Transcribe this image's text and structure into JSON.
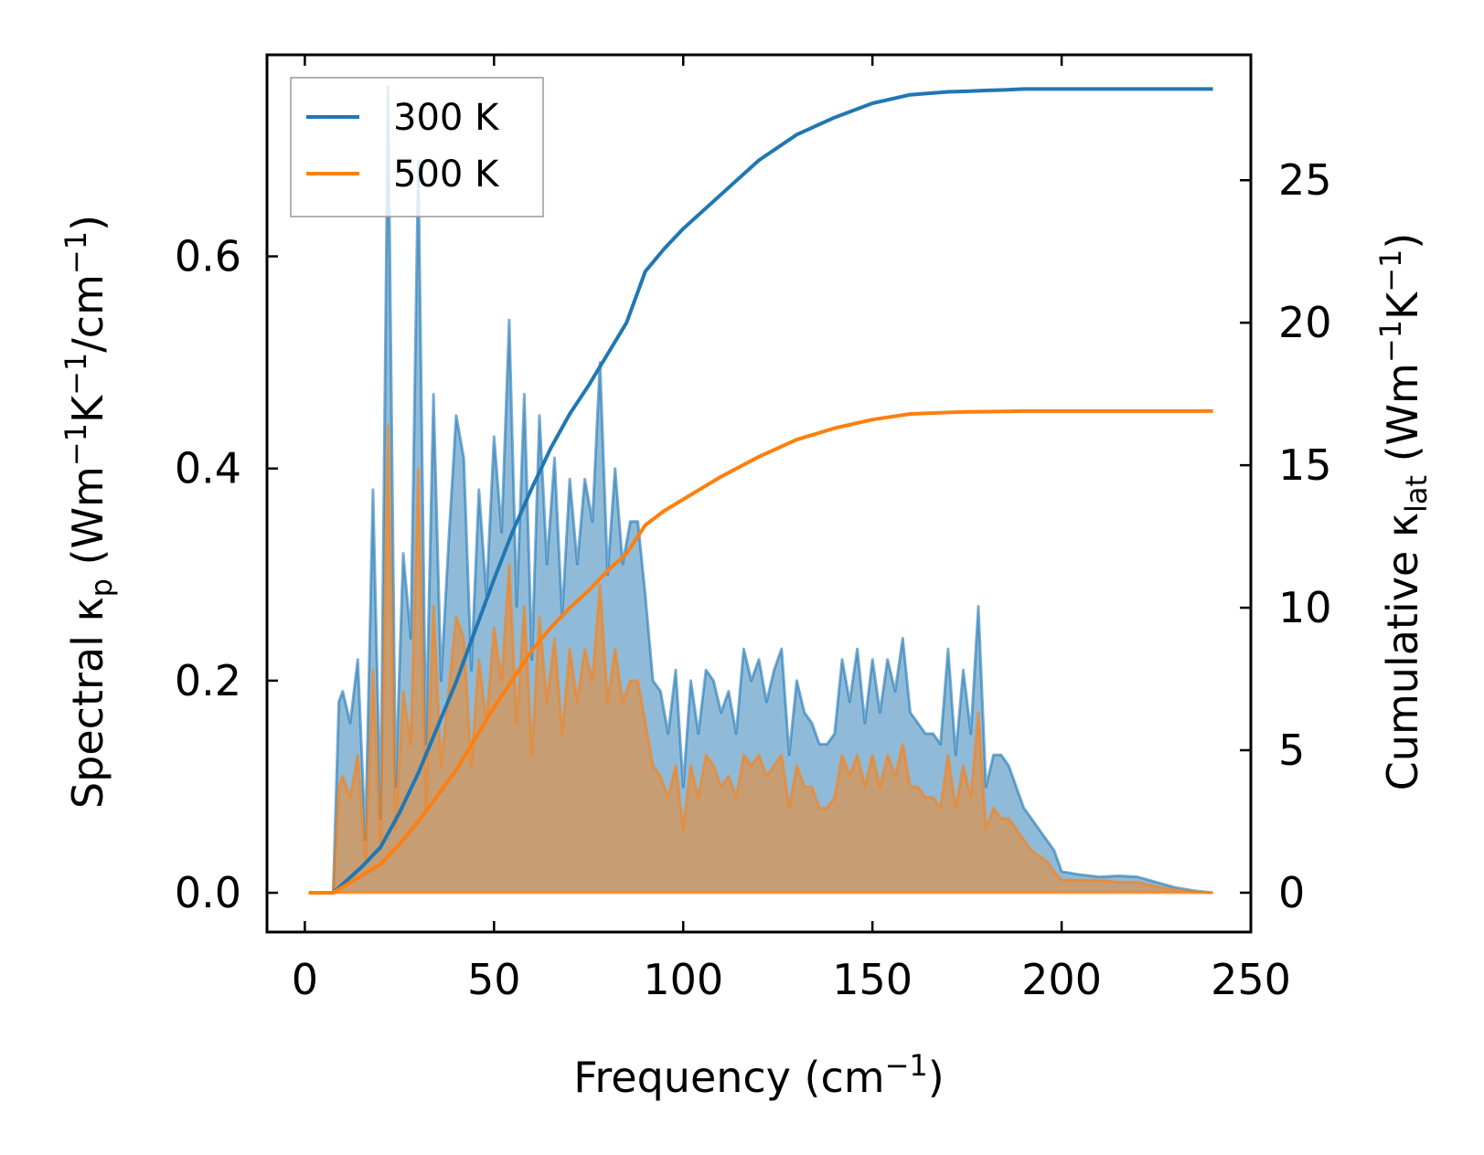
{
  "chart_data": {
    "type": "line",
    "subtype": "dual-axis filled line",
    "xlabel": {
      "base": "Frequency (cm",
      "sup": "−1",
      "end": ")"
    },
    "ylabel_left": {
      "base": "Spectral κ",
      "sub": "p",
      "mid": " (Wm",
      "sup1": "−1",
      "k": "K",
      "sup2": "−1",
      "slash": "/cm",
      "sup3": "−1",
      "end": ")"
    },
    "ylabel_right": {
      "base": "Cumulative κ",
      "sub": "lat",
      "mid": " (Wm",
      "sup1": "−1",
      "k": "K",
      "sup2": "−1",
      "end": ")"
    },
    "xlim": [
      -10,
      250
    ],
    "ylim_left": [
      -0.037,
      0.79
    ],
    "ylim_right": [
      -1.38,
      29.4
    ],
    "xticks": [
      0,
      50,
      100,
      150,
      200,
      250
    ],
    "xtick_labels": [
      "0",
      "50",
      "100",
      "150",
      "200",
      "250"
    ],
    "yticks_left": [
      0.0,
      0.2,
      0.4,
      0.6
    ],
    "ytick_labels_left": [
      "0.0",
      "0.2",
      "0.4",
      "0.6"
    ],
    "yticks_right": [
      0,
      5,
      10,
      15,
      20,
      25
    ],
    "ytick_labels_right": [
      "0",
      "5",
      "10",
      "15",
      "20",
      "25"
    ],
    "legend": {
      "location": "upper-left",
      "entries": [
        "300 K",
        "500 K"
      ]
    },
    "colors": {
      "300 K": "#1f77b4",
      "500 K": "#ff7f0e",
      "fill_300": "#1f77b4",
      "fill_500": "#ff7f0e"
    },
    "spectral": {
      "frequency": [
        1,
        7.5,
        9,
        10,
        12,
        14,
        16,
        18,
        20,
        22,
        24,
        26,
        28,
        30,
        32,
        34,
        36,
        38,
        40,
        42,
        44,
        46,
        48,
        50,
        52,
        54,
        56,
        58,
        60,
        62,
        64,
        66,
        68,
        70,
        72,
        74,
        76,
        78,
        80,
        82,
        84,
        86,
        88,
        90,
        92,
        94,
        96,
        98,
        100,
        102,
        104,
        106,
        108,
        110,
        112,
        114,
        116,
        118,
        120,
        122,
        124,
        126,
        128,
        130,
        132,
        134,
        136,
        138,
        140,
        142,
        144,
        146,
        148,
        150,
        152,
        154,
        156,
        158,
        160,
        162,
        164,
        166,
        168,
        170,
        172,
        174,
        176,
        178,
        180,
        182,
        184,
        186,
        188,
        190,
        192,
        194,
        196,
        198,
        200,
        205,
        210,
        215,
        220,
        225,
        230,
        235,
        240
      ],
      "300 K": [
        0,
        0,
        0.18,
        0.19,
        0.16,
        0.22,
        0.05,
        0.38,
        0.07,
        0.76,
        0.1,
        0.32,
        0.24,
        0.69,
        0.14,
        0.47,
        0.2,
        0.33,
        0.45,
        0.41,
        0.21,
        0.38,
        0.28,
        0.43,
        0.34,
        0.54,
        0.27,
        0.47,
        0.22,
        0.45,
        0.31,
        0.41,
        0.26,
        0.39,
        0.31,
        0.39,
        0.35,
        0.5,
        0.3,
        0.4,
        0.31,
        0.35,
        0.35,
        0.28,
        0.2,
        0.19,
        0.15,
        0.21,
        0.1,
        0.2,
        0.15,
        0.21,
        0.2,
        0.17,
        0.19,
        0.15,
        0.23,
        0.2,
        0.22,
        0.18,
        0.21,
        0.23,
        0.13,
        0.2,
        0.17,
        0.16,
        0.14,
        0.14,
        0.15,
        0.22,
        0.18,
        0.23,
        0.16,
        0.22,
        0.17,
        0.22,
        0.19,
        0.24,
        0.17,
        0.16,
        0.15,
        0.15,
        0.14,
        0.23,
        0.13,
        0.21,
        0.15,
        0.27,
        0.1,
        0.13,
        0.13,
        0.12,
        0.1,
        0.08,
        0.07,
        0.06,
        0.05,
        0.04,
        0.02,
        0.017,
        0.015,
        0.016,
        0.015,
        0.01,
        0.005,
        0.002,
        0
      ],
      "500 K": [
        0,
        0,
        0.1,
        0.11,
        0.09,
        0.13,
        0.03,
        0.21,
        0.04,
        0.44,
        0.06,
        0.19,
        0.14,
        0.4,
        0.08,
        0.27,
        0.12,
        0.19,
        0.26,
        0.24,
        0.12,
        0.22,
        0.16,
        0.25,
        0.2,
        0.31,
        0.16,
        0.27,
        0.13,
        0.26,
        0.18,
        0.24,
        0.15,
        0.23,
        0.18,
        0.23,
        0.2,
        0.29,
        0.18,
        0.23,
        0.18,
        0.2,
        0.2,
        0.16,
        0.12,
        0.11,
        0.09,
        0.12,
        0.06,
        0.12,
        0.09,
        0.13,
        0.12,
        0.1,
        0.11,
        0.09,
        0.13,
        0.12,
        0.13,
        0.11,
        0.12,
        0.13,
        0.08,
        0.12,
        0.1,
        0.1,
        0.08,
        0.08,
        0.09,
        0.13,
        0.11,
        0.13,
        0.1,
        0.13,
        0.1,
        0.13,
        0.11,
        0.14,
        0.1,
        0.1,
        0.09,
        0.09,
        0.08,
        0.13,
        0.08,
        0.12,
        0.09,
        0.17,
        0.06,
        0.08,
        0.07,
        0.07,
        0.06,
        0.05,
        0.04,
        0.035,
        0.03,
        0.02,
        0.012,
        0.012,
        0.012,
        0.01,
        0.01,
        0.006,
        0.003,
        0.001,
        0
      ]
    },
    "cumulative": {
      "frequency": [
        1,
        7.5,
        10,
        15,
        20,
        25,
        30,
        35,
        40,
        45,
        50,
        55,
        60,
        65,
        70,
        75,
        80,
        85,
        90,
        95,
        100,
        110,
        120,
        130,
        140,
        150,
        160,
        170,
        175,
        180,
        185,
        190,
        195,
        200,
        210,
        220,
        230,
        240
      ],
      "300 K": [
        0,
        0,
        0.3,
        0.9,
        1.6,
        2.8,
        4.2,
        5.8,
        7.4,
        9.2,
        11.0,
        12.7,
        14.2,
        15.6,
        16.8,
        17.8,
        18.9,
        20.0,
        21.8,
        22.6,
        23.3,
        24.5,
        25.7,
        26.6,
        27.2,
        27.7,
        28.0,
        28.1,
        28.12,
        28.15,
        28.17,
        28.2,
        28.2,
        28.2,
        28.2,
        28.2,
        28.2,
        28.2
      ],
      "500 K": [
        0,
        0,
        0.2,
        0.6,
        1.0,
        1.7,
        2.5,
        3.4,
        4.3,
        5.4,
        6.5,
        7.5,
        8.5,
        9.3,
        10.0,
        10.6,
        11.3,
        11.9,
        12.9,
        13.4,
        13.8,
        14.6,
        15.3,
        15.9,
        16.3,
        16.6,
        16.8,
        16.85,
        16.87,
        16.88,
        16.89,
        16.9,
        16.9,
        16.9,
        16.9,
        16.9,
        16.9,
        16.9
      ]
    }
  }
}
